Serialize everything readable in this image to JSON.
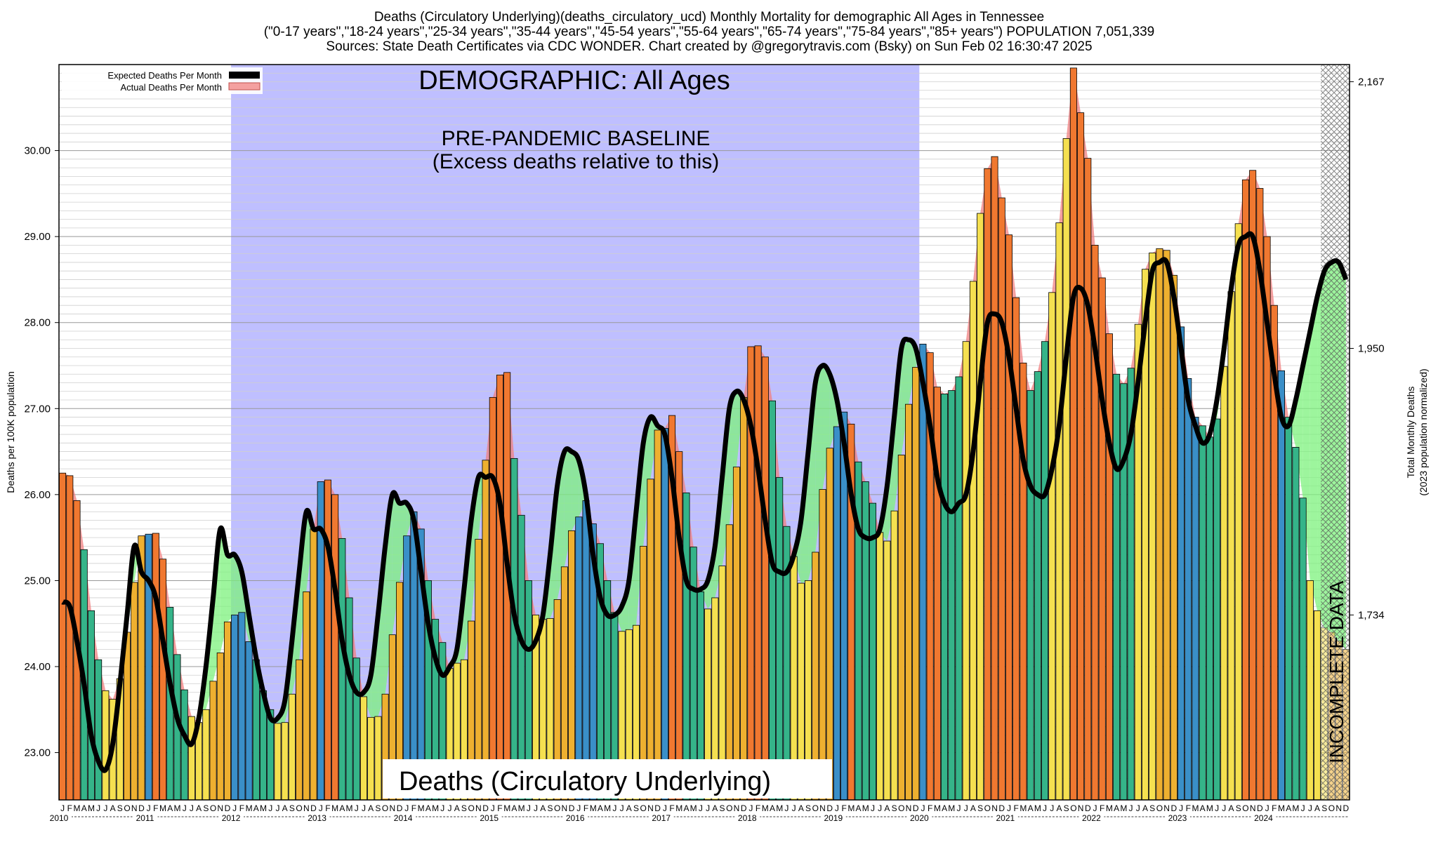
{
  "header": {
    "title_line1": "Deaths (Circulatory Underlying)(deaths_circulatory_ucd) Monthly Mortality for demographic All Ages in Tennessee",
    "title_line2": "(\"0-17 years\",\"18-24 years\",\"25-34 years\",\"35-44 years\",\"45-54 years\",\"55-64 years\",\"65-74 years\",\"75-84 years\",\"85+ years\") POPULATION 7,051,339",
    "title_line3": "Sources: State Death Certificates via CDC WONDER.              Chart created by @gregorytravis.com (Bsky) on Sun Feb 02 16:30:47 2025"
  },
  "annotations": {
    "demographic": "DEMOGRAPHIC: All Ages",
    "baseline_line1": "PRE-PANDEMIC BASELINE",
    "baseline_line2": "(Excess deaths relative to this)",
    "bottom_title": "Deaths (Circulatory Underlying)",
    "incomplete": "INCOMPLETE DATA"
  },
  "legend": {
    "expected_label": "Expected Deaths Per Month",
    "actual_label": "Actual Deaths Per Month"
  },
  "colors": {
    "baseline_band": "#bfbfff",
    "excess_fill": "#f08080",
    "deficit_fill": "#7cf27c",
    "expected_line": "#000000",
    "winter_bar": "#3a8fc8",
    "spring_bar": "#35b489",
    "summer_bar": "#f5e050",
    "fall_bar": "#eeb030"
  },
  "chart_data": {
    "type": "bar",
    "ylabel_left": "Deaths per 100K population",
    "ylabel_right_line1": "Total Monthly Deaths",
    "ylabel_right_line2": "(2023 population normalized)",
    "ylim": [
      22.45,
      31.0
    ],
    "yticks_left": [
      "23.00",
      "24.00",
      "25.00",
      "26.00",
      "27.00",
      "28.00",
      "29.00",
      "30.00"
    ],
    "yticks_left_values": [
      23,
      24,
      25,
      26,
      27,
      28,
      29,
      30
    ],
    "yticks_right": [
      "1,734",
      "1,950",
      "2,167"
    ],
    "yticks_right_values": [
      24.6,
      27.7,
      30.8
    ],
    "month_letters": [
      "J",
      "F",
      "M",
      "A",
      "M",
      "J",
      "J",
      "A",
      "S",
      "O",
      "N",
      "D"
    ],
    "years": [
      "2010",
      "2011",
      "2012",
      "2013",
      "2014",
      "2015",
      "2016",
      "2017",
      "2018",
      "2019",
      "2020",
      "2021",
      "2022",
      "2023",
      "2024"
    ],
    "baseline_period": [
      "2012-01",
      "2019-12"
    ],
    "incomplete_from": "2024-09",
    "series": [
      {
        "name": "Actual Deaths Per Month",
        "values": [
          26.25,
          26.22,
          25.93,
          25.36,
          24.65,
          24.08,
          23.72,
          23.62,
          23.86,
          24.4,
          24.98,
          25.52,
          25.54,
          25.55,
          25.25,
          24.69,
          24.14,
          23.73,
          23.42,
          23.35,
          23.5,
          23.83,
          24.16,
          24.52,
          24.6,
          24.63,
          24.29,
          24.08,
          23.72,
          23.5,
          23.34,
          23.35,
          23.68,
          24.08,
          24.87,
          25.6,
          26.15,
          26.17,
          26.0,
          25.49,
          24.8,
          24.1,
          23.65,
          23.41,
          23.42,
          23.68,
          24.37,
          24.98,
          25.52,
          25.8,
          25.6,
          25.0,
          24.55,
          24.28,
          23.98,
          24.04,
          24.08,
          24.53,
          25.48,
          26.4,
          27.13,
          27.39,
          27.42,
          26.42,
          25.76,
          25.0,
          24.6,
          24.55,
          24.56,
          24.78,
          25.16,
          25.58,
          25.74,
          25.93,
          25.66,
          25.43,
          25.0,
          24.63,
          24.41,
          24.43,
          24.48,
          25.4,
          26.18,
          26.75,
          26.77,
          26.92,
          26.5,
          26.02,
          25.39,
          24.87,
          24.67,
          24.8,
          25.17,
          25.65,
          26.32,
          27.13,
          27.72,
          27.73,
          27.6,
          27.09,
          26.2,
          25.63,
          25.28,
          24.97,
          25.0,
          25.33,
          26.06,
          26.54,
          26.79,
          26.96,
          26.82,
          26.38,
          26.15,
          25.9,
          25.56,
          25.46,
          25.81,
          26.46,
          27.05,
          27.48,
          27.75,
          27.65,
          27.25,
          27.17,
          27.21,
          27.37,
          27.78,
          28.48,
          29.27,
          29.79,
          29.93,
          29.45,
          29.02,
          28.29,
          27.53,
          27.21,
          27.43,
          27.78,
          28.35,
          29.16,
          30.14,
          30.96,
          30.44,
          29.91,
          28.9,
          28.52,
          27.87,
          27.4,
          27.29,
          27.47,
          27.98,
          28.62,
          28.81,
          28.86,
          28.84,
          28.55,
          27.95,
          27.35,
          26.9,
          26.8,
          26.67,
          26.88,
          27.49,
          28.36,
          29.15,
          29.66,
          29.77,
          29.56,
          29.0,
          28.2,
          27.44,
          26.9,
          26.55,
          25.96,
          25.0,
          24.65,
          24.45,
          24.4,
          24.3,
          24.2
        ]
      },
      {
        "name": "Expected Deaths Per Month",
        "values": [
          24.75,
          24.7,
          24.3,
          23.8,
          23.2,
          22.9,
          22.8,
          23.1,
          23.8,
          24.6,
          25.4,
          25.1,
          25.0,
          24.8,
          24.3,
          23.8,
          23.4,
          23.2,
          23.1,
          23.4,
          24.0,
          24.8,
          25.6,
          25.3,
          25.3,
          25.1,
          24.6,
          24.1,
          23.7,
          23.4,
          23.4,
          23.6,
          24.3,
          25.1,
          25.8,
          25.6,
          25.6,
          25.4,
          24.9,
          24.3,
          23.9,
          23.7,
          23.7,
          23.9,
          24.6,
          25.4,
          26.0,
          25.9,
          25.9,
          25.7,
          25.1,
          24.5,
          24.1,
          23.9,
          24.0,
          24.2,
          24.9,
          25.7,
          26.2,
          26.2,
          26.2,
          25.9,
          25.2,
          24.6,
          24.3,
          24.2,
          24.3,
          24.6,
          25.3,
          26.1,
          26.5,
          26.5,
          26.4,
          26.0,
          25.3,
          24.8,
          24.6,
          24.6,
          24.7,
          25.0,
          25.8,
          26.6,
          26.9,
          26.8,
          26.7,
          26.2,
          25.5,
          25.0,
          24.9,
          24.9,
          25.0,
          25.4,
          26.2,
          27.0,
          27.2,
          27.1,
          26.8,
          26.3,
          25.7,
          25.2,
          25.1,
          25.1,
          25.3,
          25.7,
          26.5,
          27.3,
          27.5,
          27.4,
          27.1,
          26.6,
          26.0,
          25.6,
          25.5,
          25.5,
          25.6,
          26.1,
          26.9,
          27.7,
          27.8,
          27.7,
          27.3,
          26.8,
          26.2,
          25.9,
          25.8,
          25.9,
          26.0,
          26.5,
          27.3,
          28.0,
          28.1,
          28.0,
          27.6,
          27.0,
          26.4,
          26.1,
          26.0,
          26.0,
          26.3,
          26.8,
          27.6,
          28.3,
          28.4,
          28.2,
          27.7,
          27.1,
          26.6,
          26.3,
          26.4,
          26.7,
          27.3,
          28.0,
          28.6,
          28.7,
          28.7,
          28.3,
          27.7,
          27.1,
          26.8,
          26.6,
          26.7,
          27.1,
          27.7,
          28.4,
          28.9,
          29.0,
          29.0,
          28.6,
          28.0,
          27.4,
          26.9,
          26.8,
          27.1,
          27.5,
          27.9,
          28.3,
          28.6,
          28.7,
          28.7,
          28.5
        ]
      }
    ]
  }
}
